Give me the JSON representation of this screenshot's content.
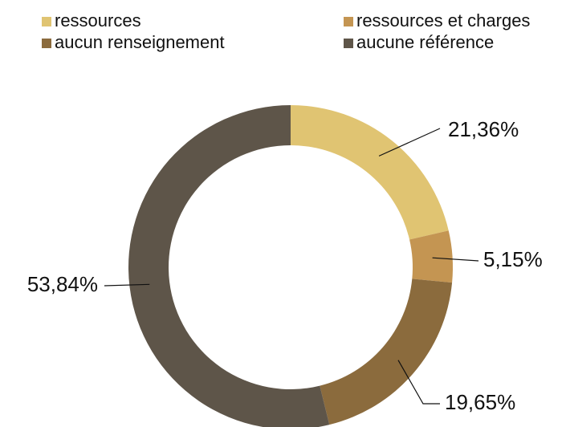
{
  "chart_data": {
    "type": "donut",
    "categories": [
      "ressources",
      "ressources et charges",
      "aucun renseignement",
      "aucune référence"
    ],
    "values": [
      21.36,
      5.15,
      19.65,
      53.84
    ],
    "value_labels": [
      "21,36%",
      "5,15%",
      "19,65%",
      "53,84%"
    ],
    "colors": [
      "#e0c472",
      "#c49552",
      "#8b6b3d",
      "#5e5549"
    ],
    "legend": "top"
  }
}
